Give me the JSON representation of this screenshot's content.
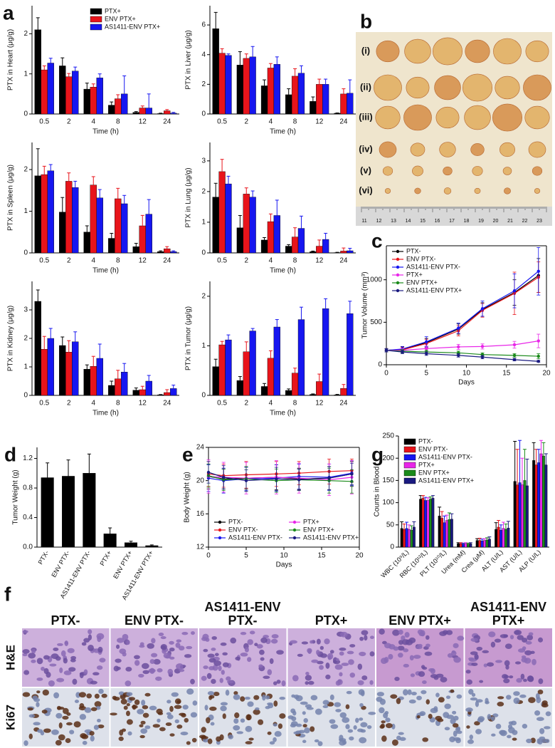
{
  "panel_labels": [
    "a",
    "b",
    "c",
    "d",
    "e",
    "f",
    "g"
  ],
  "tumor_photo": {
    "row_labels": [
      "(i)",
      "(ii)",
      "(iii)",
      "(iv)",
      "(v)",
      "(vi)"
    ],
    "ruler_labels": [
      "11",
      "12",
      "13",
      "14",
      "15",
      "16",
      "17",
      "18",
      "19",
      "20",
      "21",
      "22",
      "23"
    ]
  },
  "histology": {
    "columns": [
      "PTX-",
      "ENV PTX-",
      "AS1411-ENV PTX-",
      "PTX+",
      "ENV PTX+",
      "AS1411-ENV PTX+"
    ],
    "rows": [
      "H&E",
      "Ki67"
    ]
  },
  "chart_data": [
    {
      "type": "bar",
      "ylabel": "PTX in Heart (μg/g)",
      "xlabel": "Time (h)",
      "categories": [
        "0.5",
        "2",
        "4",
        "8",
        "12",
        "24"
      ],
      "ylim": [
        0,
        2.7
      ],
      "yticks": [
        0,
        1,
        2
      ],
      "legend": "upper right",
      "series": [
        {
          "name": "PTX+",
          "color": "#000000",
          "values": [
            2.1,
            1.2,
            0.62,
            0.22,
            0.04,
            0.01
          ],
          "errors": [
            0.3,
            0.2,
            0.15,
            0.08,
            0.02,
            0.01
          ]
        },
        {
          "name": "ENV PTX+",
          "color": "#e8141b",
          "values": [
            1.1,
            0.93,
            0.67,
            0.38,
            0.15,
            0.08
          ],
          "errors": [
            0.1,
            0.08,
            0.08,
            0.1,
            0.05,
            0.03
          ]
        },
        {
          "name": "AS1411-ENV PTX+",
          "color": "#1616f0",
          "values": [
            1.27,
            1.07,
            0.9,
            0.5,
            0.15,
            0.02
          ],
          "errors": [
            0.12,
            0.1,
            0.1,
            0.45,
            0.35,
            0.02
          ]
        }
      ]
    },
    {
      "type": "bar",
      "ylabel": "PTX in Liver (μg/g)",
      "xlabel": "Time (h)",
      "categories": [
        "0.5",
        "2",
        "4",
        "8",
        "12",
        "24"
      ],
      "ylim": [
        0,
        7.3
      ],
      "yticks": [
        0,
        2,
        4,
        6
      ],
      "series": [
        {
          "color": "#000000",
          "values": [
            5.75,
            3.3,
            1.9,
            1.3,
            0.85,
            0.05
          ],
          "errors": [
            1.1,
            0.9,
            0.4,
            0.4,
            0.3,
            0.02
          ]
        },
        {
          "color": "#e8141b",
          "values": [
            4.1,
            3.75,
            3.1,
            2.55,
            2.0,
            1.35
          ],
          "errors": [
            0.3,
            0.3,
            0.3,
            0.5,
            0.35,
            0.35
          ]
        },
        {
          "color": "#1616f0",
          "values": [
            3.95,
            3.85,
            3.35,
            2.75,
            2.0,
            1.4
          ],
          "errors": [
            0.1,
            0.7,
            0.5,
            0.5,
            0.35,
            0.9
          ]
        }
      ]
    },
    {
      "type": "bar",
      "ylabel": "PTX in Spleen (μg/g)",
      "xlabel": "Time (h)",
      "categories": [
        "0.5",
        "2",
        "4",
        "8",
        "12",
        "24"
      ],
      "ylim": [
        0,
        2.65
      ],
      "yticks": [
        0,
        1,
        2
      ],
      "series": [
        {
          "color": "#000000",
          "values": [
            1.85,
            0.98,
            0.5,
            0.35,
            0.15,
            0.03
          ],
          "errors": [
            0.65,
            0.35,
            0.15,
            0.12,
            0.08,
            0.02
          ]
        },
        {
          "color": "#e8141b",
          "values": [
            1.88,
            1.72,
            1.63,
            1.3,
            0.65,
            0.1
          ],
          "errors": [
            0.2,
            0.2,
            0.2,
            0.25,
            0.25,
            0.05
          ]
        },
        {
          "color": "#1616f0",
          "values": [
            1.97,
            1.57,
            1.32,
            1.18,
            0.93,
            0.03
          ],
          "errors": [
            0.15,
            0.15,
            0.2,
            0.2,
            0.35,
            0.02
          ]
        }
      ]
    },
    {
      "type": "bar",
      "ylabel": "PTX in Lung (μg/g)",
      "xlabel": "Time (h)",
      "categories": [
        "0.5",
        "2",
        "4",
        "8",
        "12",
        "24"
      ],
      "ylim": [
        0,
        3.6
      ],
      "yticks": [
        0,
        1,
        2,
        3
      ],
      "series": [
        {
          "color": "#000000",
          "values": [
            1.82,
            0.82,
            0.42,
            0.22,
            0.04,
            0.01
          ],
          "errors": [
            0.45,
            0.4,
            0.08,
            0.05,
            0.02,
            0.01
          ]
        },
        {
          "color": "#e8141b",
          "values": [
            2.65,
            1.92,
            1.02,
            0.52,
            0.22,
            0.06
          ],
          "errors": [
            0.4,
            0.2,
            0.25,
            0.3,
            0.2,
            0.1
          ]
        },
        {
          "color": "#1616f0",
          "values": [
            2.25,
            1.82,
            1.22,
            0.8,
            0.44,
            0.07
          ],
          "errors": [
            0.25,
            0.2,
            0.5,
            0.4,
            0.2,
            0.08
          ]
        }
      ]
    },
    {
      "type": "bar",
      "ylabel": "PTX in Kidney (μg/g)",
      "xlabel": "Time (h)",
      "categories": [
        "0.5",
        "2",
        "4",
        "8",
        "12",
        "24"
      ],
      "ylim": [
        0,
        4
      ],
      "yticks": [
        0,
        1,
        2,
        3
      ],
      "series": [
        {
          "color": "#000000",
          "values": [
            3.3,
            1.75,
            0.92,
            0.35,
            0.18,
            0.02
          ],
          "errors": [
            0.4,
            0.3,
            0.15,
            0.15,
            0.08,
            0.01
          ]
        },
        {
          "color": "#e8141b",
          "values": [
            1.62,
            1.52,
            1.02,
            0.58,
            0.2,
            0.1
          ],
          "errors": [
            0.45,
            0.4,
            0.35,
            0.3,
            0.12,
            0.1
          ]
        },
        {
          "color": "#1616f0",
          "values": [
            2.0,
            1.88,
            1.3,
            0.82,
            0.5,
            0.24
          ],
          "errors": [
            0.35,
            0.35,
            0.5,
            0.3,
            0.2,
            0.12
          ]
        }
      ]
    },
    {
      "type": "bar",
      "ylabel": "PTX in Tumor (μg/g)",
      "xlabel": "Time (h)",
      "categories": [
        "0.5",
        "2",
        "4",
        "8",
        "12",
        "24"
      ],
      "ylim": [
        0,
        2.3
      ],
      "yticks": [
        0,
        1,
        2
      ],
      "series": [
        {
          "color": "#000000",
          "values": [
            0.58,
            0.3,
            0.18,
            0.1,
            0.02,
            0.01
          ],
          "errors": [
            0.15,
            0.08,
            0.06,
            0.03,
            0.01,
            0.01
          ]
        },
        {
          "color": "#e8141b",
          "values": [
            1.02,
            0.88,
            0.75,
            0.45,
            0.28,
            0.14
          ],
          "errors": [
            0.07,
            0.2,
            0.15,
            0.1,
            0.15,
            0.08
          ]
        },
        {
          "color": "#1616f0",
          "values": [
            1.12,
            1.3,
            1.38,
            1.53,
            1.75,
            1.65
          ],
          "errors": [
            0.1,
            0.05,
            0.15,
            0.25,
            0.2,
            0.25
          ]
        }
      ]
    },
    {
      "type": "line",
      "ylabel": "Tumor Volume (mm³)",
      "xlabel": "Days",
      "x": [
        0,
        2,
        5,
        9,
        12,
        16,
        19
      ],
      "xlim": [
        0,
        20
      ],
      "xticks": [
        0,
        5,
        10,
        15,
        20
      ],
      "ylim": [
        0,
        1400
      ],
      "yticks": [
        0,
        500,
        1000
      ],
      "legend": "upper left",
      "series": [
        {
          "name": "PTX-",
          "color": "#000000",
          "values": [
            170,
            180,
            260,
            420,
            650,
            850,
            1050
          ],
          "errors": [
            20,
            30,
            50,
            60,
            80,
            150,
            200
          ]
        },
        {
          "name": "ENV PTX-",
          "color": "#e8141b",
          "values": [
            170,
            175,
            250,
            400,
            640,
            840,
            1030
          ],
          "errors": [
            20,
            30,
            50,
            60,
            80,
            250,
            180
          ]
        },
        {
          "name": "AS1411-ENV PTX-",
          "color": "#1616f0",
          "values": [
            170,
            185,
            270,
            430,
            660,
            870,
            1100
          ],
          "errors": [
            20,
            30,
            60,
            60,
            90,
            200,
            280
          ]
        },
        {
          "name": "PTX+",
          "color": "#e826e8",
          "values": [
            170,
            170,
            190,
            210,
            215,
            235,
            280
          ],
          "errors": [
            20,
            20,
            30,
            30,
            30,
            40,
            80
          ]
        },
        {
          "name": "ENV PTX+",
          "color": "#1a8a1a",
          "values": [
            170,
            160,
            150,
            140,
            120,
            110,
            100
          ],
          "errors": [
            20,
            20,
            20,
            20,
            20,
            20,
            30
          ]
        },
        {
          "name": "AS1411-ENV PTX+",
          "color": "#1a1a80",
          "values": [
            170,
            150,
            130,
            110,
            90,
            60,
            40
          ],
          "errors": [
            20,
            20,
            20,
            20,
            20,
            15,
            10
          ]
        }
      ]
    },
    {
      "type": "bar",
      "ylabel": "Tumor Weight (g)",
      "categories": [
        "PTX-",
        "ENV PTX-",
        "AS1411-ENV PTX-",
        "PTX+",
        "ENV PTX+",
        "AS1411-ENV PTX+"
      ],
      "ylim": [
        0,
        1.35
      ],
      "yticks": [
        {
          "value": 0,
          "label": "0.0"
        },
        0.4,
        0.8,
        1.2
      ],
      "color": "#000000",
      "values": [
        0.94,
        0.96,
        1.0,
        0.18,
        0.06,
        0.02
      ],
      "errors": [
        0.2,
        0.22,
        0.26,
        0.08,
        0.02,
        0.01
      ]
    },
    {
      "type": "line",
      "ylabel": "Body Weight (g)",
      "xlabel": "Days",
      "x": [
        0,
        2,
        5,
        9,
        12,
        16,
        19
      ],
      "xlim": [
        0,
        20
      ],
      "xticks": [
        0,
        5,
        10,
        15,
        20
      ],
      "ylim": [
        12,
        24
      ],
      "yticks": [
        12,
        16,
        20,
        24
      ],
      "legend": "lower center",
      "series": [
        {
          "name": "PTX-",
          "color": "#000000",
          "values": [
            20.5,
            20.2,
            20.3,
            20.4,
            20.2,
            20.3,
            20.8
          ],
          "errors": [
            1.5,
            1.2,
            1.3,
            1.5,
            1.3,
            1.4,
            1.5
          ]
        },
        {
          "name": "ENV PTX-",
          "color": "#e8141b",
          "values": [
            20.8,
            20.6,
            20.7,
            20.8,
            20.9,
            21.1,
            21.2
          ],
          "errors": [
            1.5,
            1.4,
            1.6,
            1.5,
            1.4,
            1.5,
            1.4
          ]
        },
        {
          "name": "AS1411-ENV PTX-",
          "color": "#1616f0",
          "values": [
            20.3,
            20.0,
            20.2,
            20.3,
            20.5,
            20.4,
            20.9
          ],
          "errors": [
            1.6,
            1.5,
            1.4,
            1.6,
            1.5,
            1.6,
            1.5
          ]
        },
        {
          "name": "PTX+",
          "color": "#e826e8",
          "values": [
            20.5,
            20.4,
            20.3,
            20.4,
            20.3,
            20.1,
            20.4
          ],
          "errors": [
            2.0,
            1.8,
            1.9,
            2.0,
            1.8,
            1.9,
            2.0
          ]
        },
        {
          "name": "ENV PTX+",
          "color": "#1a8a1a",
          "values": [
            20.6,
            20.1,
            20.2,
            20.0,
            20.1,
            20.0,
            19.9
          ],
          "errors": [
            1.4,
            1.3,
            1.5,
            1.4,
            1.3,
            1.5,
            1.4
          ]
        },
        {
          "name": "AS1411-ENV PTX+",
          "color": "#1a1a80",
          "values": [
            21.0,
            20.4,
            20.0,
            20.2,
            20.1,
            20.3,
            20.8
          ],
          "errors": [
            1.3,
            1.4,
            1.3,
            1.4,
            1.3,
            1.4,
            1.3
          ]
        }
      ]
    },
    {
      "type": "bar",
      "ylabel": "Counts in Blood",
      "categories": [
        "WBC (10⁹/L)",
        "RBC (10¹²/L)",
        "PLT (10¹⁰/L)",
        "Urea (mM)",
        "Crea (μM)",
        "ALT (U/L)",
        "AST (U/L)",
        "ALP (U/L)"
      ],
      "ylim": [
        0,
        250
      ],
      "yticks": [
        0,
        50,
        100,
        150,
        200,
        250
      ],
      "legend": "upper left",
      "series": [
        {
          "name": "PTX-",
          "color": "#000000",
          "values": [
            42,
            108,
            70,
            8,
            15,
            40,
            148,
            195
          ],
          "errors": [
            15,
            8,
            20,
            2,
            4,
            15,
            90,
            40
          ]
        },
        {
          "name": "ENV PTX-",
          "color": "#e8141b",
          "values": [
            40,
            110,
            65,
            8,
            15,
            45,
            140,
            185
          ],
          "errors": [
            12,
            6,
            15,
            2,
            5,
            15,
            80,
            35
          ]
        },
        {
          "name": "AS1411-ENV PTX-",
          "color": "#1616f0",
          "values": [
            42,
            105,
            55,
            7,
            14,
            38,
            145,
            190
          ],
          "errors": [
            14,
            7,
            15,
            2,
            4,
            12,
            95,
            30
          ]
        },
        {
          "name": "PTX+",
          "color": "#e826e8",
          "values": [
            40,
            105,
            60,
            8,
            15,
            42,
            140,
            210
          ],
          "errors": [
            10,
            6,
            12,
            2,
            4,
            14,
            60,
            30
          ]
        },
        {
          "name": "ENV PTX+",
          "color": "#1a8a1a",
          "values": [
            38,
            108,
            62,
            7,
            16,
            40,
            150,
            205
          ],
          "errors": [
            10,
            5,
            15,
            2,
            5,
            12,
            70,
            30
          ]
        },
        {
          "name": "AS1411-ENV PTX+",
          "color": "#1a1a80",
          "values": [
            45,
            110,
            63,
            8,
            18,
            43,
            138,
            185
          ],
          "errors": [
            12,
            6,
            12,
            2,
            5,
            15,
            60,
            25
          ]
        }
      ]
    }
  ]
}
